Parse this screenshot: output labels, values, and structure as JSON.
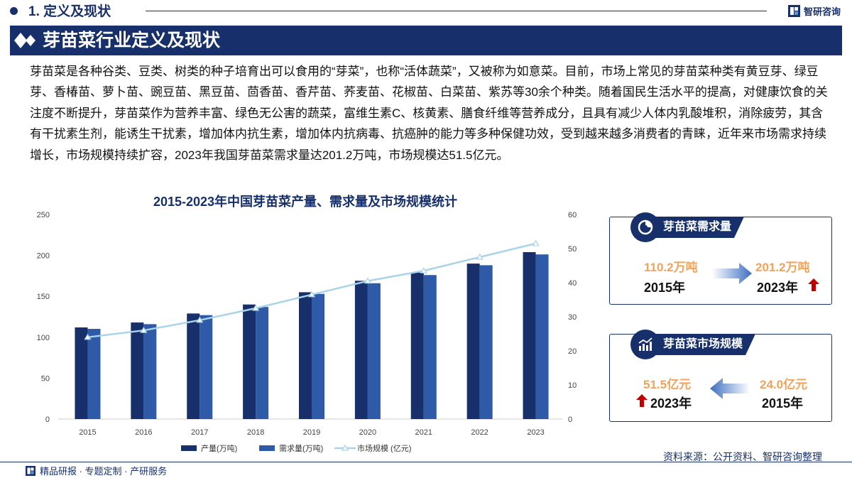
{
  "header": {
    "section_title": "1. 定义及现状",
    "brand_name": "智研咨询",
    "banner_title": "芽苗菜行业定义及现状"
  },
  "body_text": "芽苗菜是各种谷类、豆类、树类的种子培育出可以食用的“芽菜”，也称“活体蔬菜”，又被称为如意菜。目前，市场上常见的芽苗菜种类有黄豆芽、绿豆芽、香椿苗、萝卜苗、豌豆苗、黑豆苗、茴香苗、香芹苗、荞麦苗、花椒苗、白菜苗、紫苏等30余个种类。随着国民生活水平的提高，对健康饮食的关注度不断提升，芽苗菜作为营养丰富、绿色无公害的蔬菜，富维生素C、核黄素、膳食纤维等营养成分，且具有减少人体内乳酸堆积，消除疲劳，其含有干扰素生剂，能诱生干扰素，增加体内抗生素，增加体内抗病毒、抗癌肿的能力等多种保健功效，受到越来越多消费者的青睐，近年来市场需求持续增长，市场规模持续扩容，2023年我国芽苗菜需求量达201.2万吨，市场规模达51.5亿元。",
  "chart_data": {
    "type": "bar",
    "title": "2015-2023年中国芽苗菜产量、需求量及市场规模统计",
    "categories": [
      "2015",
      "2016",
      "2017",
      "2018",
      "2019",
      "2020",
      "2021",
      "2022",
      "2023"
    ],
    "series": [
      {
        "name": "产量(万吨)",
        "type": "bar",
        "axis": "left",
        "color": "#17306b",
        "values": [
          112,
          118,
          129,
          140,
          155,
          169,
          179,
          190,
          204
        ]
      },
      {
        "name": "需求量(万吨)",
        "type": "bar",
        "axis": "left",
        "color": "#2f5aa8",
        "values": [
          110.2,
          116,
          127,
          137,
          153,
          166,
          176,
          188,
          201.2
        ]
      },
      {
        "name": "市场规模  (亿元)",
        "type": "line",
        "axis": "right",
        "color": "#a9d3ea",
        "values": [
          24.0,
          26.0,
          29.0,
          32.5,
          36.5,
          40.5,
          43.5,
          47.5,
          51.5
        ]
      }
    ],
    "y_left": {
      "min": 0,
      "max": 250,
      "ticks": [
        "0",
        "50",
        "100",
        "150",
        "200",
        "250"
      ]
    },
    "y_right": {
      "min": 0,
      "max": 60,
      "ticks": [
        "0",
        "10",
        "20",
        "30",
        "40",
        "50",
        "60"
      ]
    },
    "legend": "bottom",
    "grid": false
  },
  "cards": {
    "demand": {
      "title": "芽苗菜需求量",
      "from_value": "110.2万吨",
      "from_year": "2015年",
      "to_value": "201.2万吨",
      "to_year": "2023年",
      "icon": "pie-chart-icon"
    },
    "market": {
      "title": "芽苗菜市场规模",
      "new_value": "51.5亿元",
      "new_year": "2023年",
      "old_value": "24.0亿元",
      "old_year": "2015年",
      "icon": "trend-chart-icon"
    }
  },
  "source": "资料来源：公开资料、智研咨询整理",
  "footer": "精品研报 · 专题定制 · 产研服务",
  "colors": {
    "navy": "#17306b",
    "accent_orange": "#f2a35a",
    "up_arrow": "#c00000",
    "line": "#a9d3ea"
  }
}
